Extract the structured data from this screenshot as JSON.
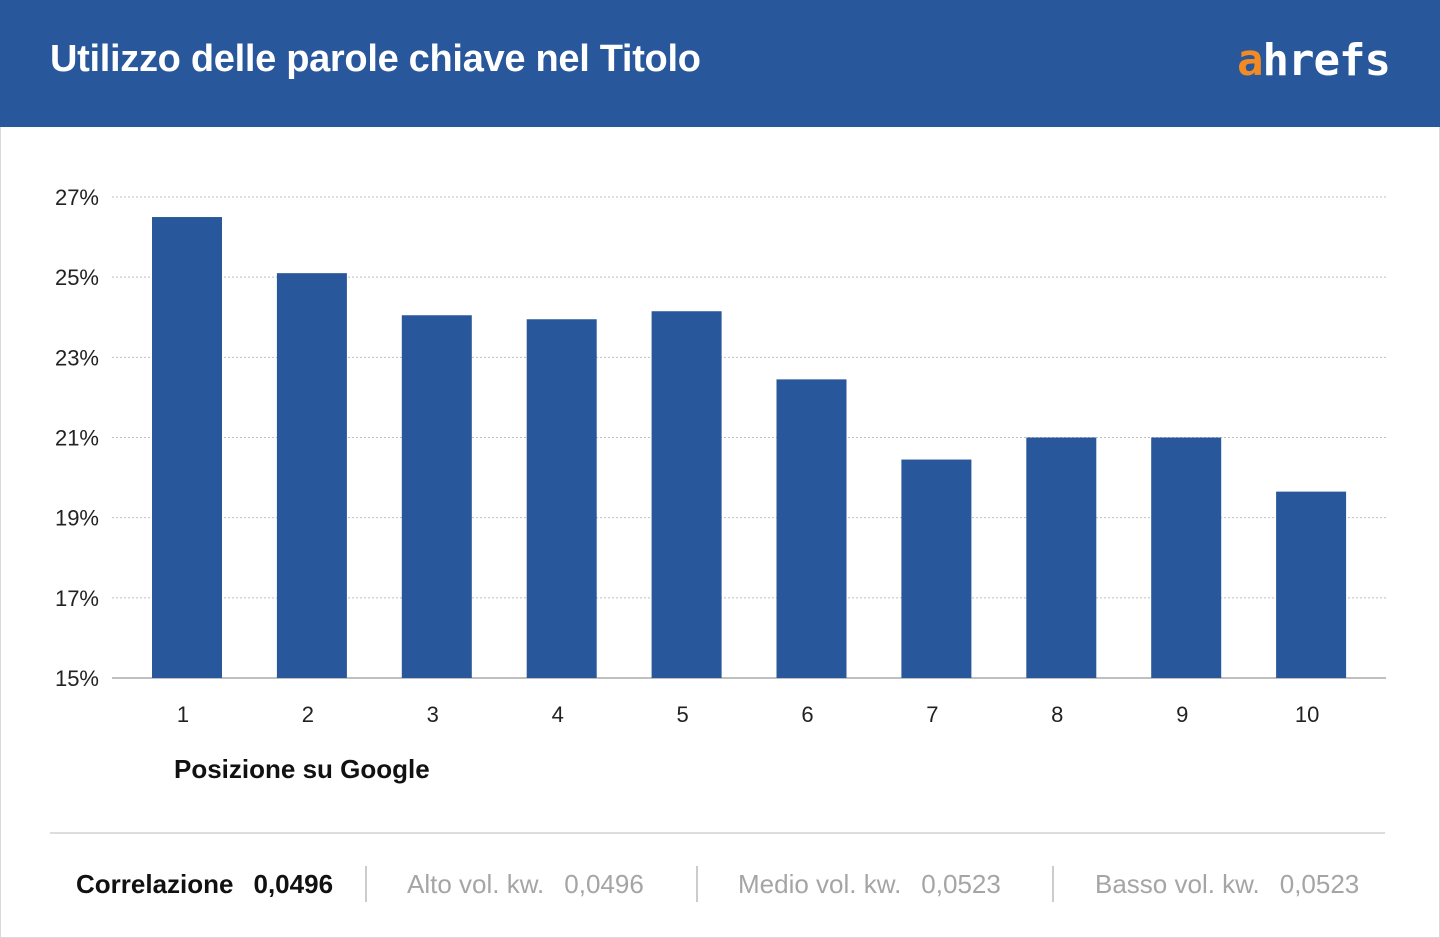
{
  "header": {
    "title": "Utilizzo delle parole chiave nel Titolo",
    "logo_accent": "a",
    "logo_rest": "hrefs",
    "background_color": "#28579b",
    "logo_accent_color": "#f28b24"
  },
  "chart_data": {
    "type": "bar",
    "categories": [
      "1",
      "2",
      "3",
      "4",
      "5",
      "6",
      "7",
      "8",
      "9",
      "10"
    ],
    "values": [
      26.5,
      25.1,
      24.05,
      23.95,
      24.15,
      22.45,
      20.45,
      21.0,
      21.0,
      19.65
    ],
    "yticks": [
      "15%",
      "17%",
      "19%",
      "21%",
      "23%",
      "25%",
      "27%"
    ],
    "ylim": [
      15,
      27
    ],
    "xlabel": "Posizione su Google",
    "ylabel": "",
    "bar_color": "#28579b",
    "grid": true
  },
  "stats": {
    "main": {
      "label": "Correlazione",
      "value": "0,0496"
    },
    "items": [
      {
        "label": "Alto vol. kw.",
        "value": "0,0496"
      },
      {
        "label": "Medio vol. kw.",
        "value": "0,0523"
      },
      {
        "label": "Basso vol. kw.",
        "value": "0,0523"
      }
    ]
  }
}
